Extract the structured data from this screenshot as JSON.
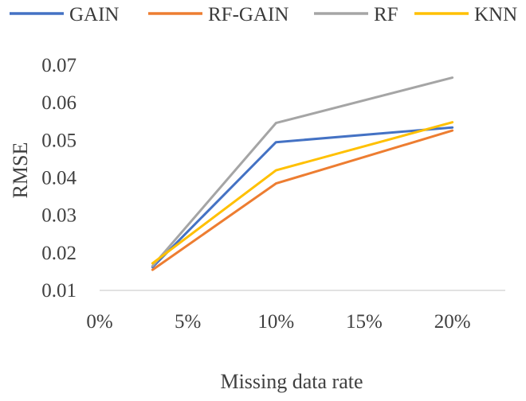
{
  "chart_data": {
    "type": "line",
    "title": "",
    "xlabel": "Missing data rate",
    "ylabel": "RMSE",
    "x": [
      0.03,
      0.1,
      0.2
    ],
    "x_ticks": [
      "0%",
      "5%",
      "10%",
      "15%",
      "20%"
    ],
    "y_ticks": [
      "0.01",
      "0.02",
      "0.03",
      "0.04",
      "0.05",
      "0.06",
      "0.07"
    ],
    "xlim": [
      0,
      0.23
    ],
    "ylim": [
      0.01,
      0.07
    ],
    "grid": false,
    "legend_position": "top",
    "series": [
      {
        "name": "GAIN",
        "color": "#4472C4",
        "values": [
          0.0162,
          0.0495,
          0.0534
        ]
      },
      {
        "name": "RF-GAIN",
        "color": "#ED7D31",
        "values": [
          0.0155,
          0.0385,
          0.0526
        ]
      },
      {
        "name": "RF",
        "color": "#A5A5A5",
        "values": [
          0.0165,
          0.0546,
          0.0667
        ]
      },
      {
        "name": "KNN",
        "color": "#FFC000",
        "values": [
          0.0172,
          0.042,
          0.0548
        ]
      }
    ]
  }
}
